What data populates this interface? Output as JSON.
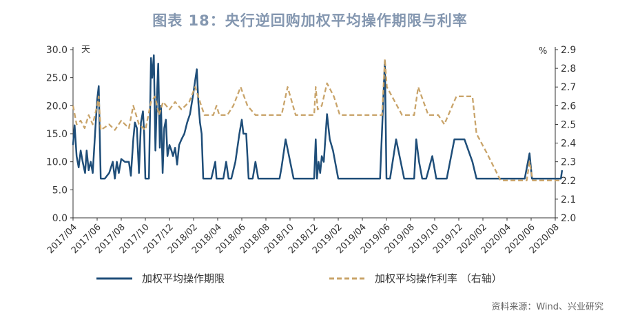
{
  "title": "图表 18：央行逆回购加权平均操作期限与利率",
  "source": "资料来源：Wind、兴业研究",
  "colors": {
    "term": "#1f4e79",
    "rate": "#c9a46a",
    "axis": "#333333"
  },
  "chart_data": {
    "type": "line",
    "left_axis_unit": "天",
    "right_axis_unit": "%",
    "ylim_left": [
      0,
      30
    ],
    "ylim_right": [
      2.0,
      2.9
    ],
    "left_ticks": [
      "0.0",
      "5.0",
      "10.0",
      "15.0",
      "20.0",
      "25.0",
      "30.0"
    ],
    "right_ticks": [
      "2.0",
      "2.1",
      "2.2",
      "2.3",
      "2.4",
      "2.5",
      "2.6",
      "2.7",
      "2.8",
      "2.9"
    ],
    "x_ticks": [
      "2017/04",
      "2017/06",
      "2017/08",
      "2017/10",
      "2017/12",
      "2018/02",
      "2018/04",
      "2018/06",
      "2018/08",
      "2018/10",
      "2018/12",
      "2019/02",
      "2019/04",
      "2019/06",
      "2019/08",
      "2019/10",
      "2019/12",
      "2020/02",
      "2020/04",
      "2020/06",
      "2020/08"
    ],
    "legend": {
      "term": "加权平均操作期限",
      "rate": "加权平均操作利率  （右轴）"
    },
    "series": [
      {
        "key": "term",
        "name": "加权平均操作期限",
        "axis": "left",
        "style": "solid",
        "points": [
          [
            "2017/04/01",
            13
          ],
          [
            "2017/04/05",
            16.5
          ],
          [
            "2017/04/10",
            11
          ],
          [
            "2017/04/15",
            9
          ],
          [
            "2017/04/20",
            12
          ],
          [
            "2017/04/25",
            10
          ],
          [
            "2017/05/01",
            8
          ],
          [
            "2017/05/05",
            12
          ],
          [
            "2017/05/10",
            8.5
          ],
          [
            "2017/05/15",
            10
          ],
          [
            "2017/05/20",
            8
          ],
          [
            "2017/05/25",
            14
          ],
          [
            "2017/06/01",
            21
          ],
          [
            "2017/06/05",
            23.5
          ],
          [
            "2017/06/10",
            7
          ],
          [
            "2017/06/20",
            7
          ],
          [
            "2017/07/01",
            8
          ],
          [
            "2017/07/10",
            10
          ],
          [
            "2017/07/15",
            7
          ],
          [
            "2017/07/20",
            10
          ],
          [
            "2017/07/25",
            8
          ],
          [
            "2017/08/01",
            10.5
          ],
          [
            "2017/08/10",
            10
          ],
          [
            "2017/08/20",
            10
          ],
          [
            "2017/08/25",
            7.5
          ],
          [
            "2017/09/01",
            14
          ],
          [
            "2017/09/05",
            17
          ],
          [
            "2017/09/10",
            16
          ],
          [
            "2017/09/15",
            8
          ],
          [
            "2017/09/20",
            17
          ],
          [
            "2017/09/25",
            19
          ],
          [
            "2017/09/28",
            15
          ],
          [
            "2017/10/01",
            7
          ],
          [
            "2017/10/10",
            7
          ],
          [
            "2017/10/15",
            28.5
          ],
          [
            "2017/10/18",
            25
          ],
          [
            "2017/10/22",
            29
          ],
          [
            "2017/10/26",
            12
          ],
          [
            "2017/10/30",
            22
          ],
          [
            "2017/11/03",
            27.5
          ],
          [
            "2017/11/07",
            12.5
          ],
          [
            "2017/11/10",
            20
          ],
          [
            "2017/11/14",
            8
          ],
          [
            "2017/11/18",
            16
          ],
          [
            "2017/11/22",
            17.5
          ],
          [
            "2017/11/26",
            11
          ],
          [
            "2017/12/01",
            13
          ],
          [
            "2017/12/06",
            12
          ],
          [
            "2017/12/10",
            11
          ],
          [
            "2017/12/15",
            12.5
          ],
          [
            "2017/12/20",
            9.5
          ],
          [
            "2017/12/25",
            13
          ],
          [
            "2018/01/01",
            14
          ],
          [
            "2018/01/08",
            15
          ],
          [
            "2018/01/15",
            17
          ],
          [
            "2018/01/22",
            18.5
          ],
          [
            "2018/01/30",
            22
          ],
          [
            "2018/02/05",
            24.5
          ],
          [
            "2018/02/09",
            26.5
          ],
          [
            "2018/02/13",
            20.5
          ],
          [
            "2018/02/17",
            17
          ],
          [
            "2018/02/21",
            15
          ],
          [
            "2018/02/25",
            7
          ],
          [
            "2018/03/15",
            7
          ],
          [
            "2018/03/25",
            10
          ],
          [
            "2018/03/28",
            7
          ],
          [
            "2018/04/15",
            7
          ],
          [
            "2018/04/22",
            10
          ],
          [
            "2018/04/28",
            7
          ],
          [
            "2018/05/05",
            7
          ],
          [
            "2018/05/15",
            10
          ],
          [
            "2018/05/25",
            15
          ],
          [
            "2018/06/01",
            17.5
          ],
          [
            "2018/06/05",
            15
          ],
          [
            "2018/06/12",
            15
          ],
          [
            "2018/06/18",
            7
          ],
          [
            "2018/06/28",
            7
          ],
          [
            "2018/07/05",
            10
          ],
          [
            "2018/07/12",
            7
          ],
          [
            "2018/09/05",
            7
          ],
          [
            "2018/09/10",
            9
          ],
          [
            "2018/09/20",
            14
          ],
          [
            "2018/10/10",
            7
          ],
          [
            "2018/12/01",
            7
          ],
          [
            "2018/12/05",
            14
          ],
          [
            "2018/12/08",
            7
          ],
          [
            "2018/12/12",
            10
          ],
          [
            "2018/12/16",
            8
          ],
          [
            "2018/12/20",
            11
          ],
          [
            "2018/12/25",
            10
          ],
          [
            "2019/01/03",
            18.5
          ],
          [
            "2019/01/10",
            14
          ],
          [
            "2019/01/18",
            12
          ],
          [
            "2019/02/01",
            7
          ],
          [
            "2019/05/15",
            7
          ],
          [
            "2019/05/27",
            28
          ],
          [
            "2019/05/31",
            7
          ],
          [
            "2019/06/10",
            7
          ],
          [
            "2019/06/25",
            14
          ],
          [
            "2019/07/15",
            7
          ],
          [
            "2019/08/10",
            7
          ],
          [
            "2019/08/15",
            14
          ],
          [
            "2019/08/22",
            10
          ],
          [
            "2019/08/30",
            7
          ],
          [
            "2019/09/10",
            7
          ],
          [
            "2019/09/25",
            11
          ],
          [
            "2019/10/05",
            7
          ],
          [
            "2019/11/01",
            7
          ],
          [
            "2019/11/20",
            14
          ],
          [
            "2019/12/15",
            14
          ],
          [
            "2020/01/05",
            10
          ],
          [
            "2020/01/15",
            7
          ],
          [
            "2020/05/15",
            7
          ],
          [
            "2020/05/27",
            11.5
          ],
          [
            "2020/06/03",
            7
          ],
          [
            "2020/08/15",
            7
          ],
          [
            "2020/08/18",
            8.5
          ]
        ]
      },
      {
        "key": "rate",
        "name": "加权平均操作利率  （右轴）",
        "axis": "right",
        "style": "dashed",
        "points": [
          [
            "2017/04/01",
            2.6
          ],
          [
            "2017/04/10",
            2.5
          ],
          [
            "2017/04/20",
            2.52
          ],
          [
            "2017/04/30",
            2.48
          ],
          [
            "2017/05/10",
            2.55
          ],
          [
            "2017/05/20",
            2.5
          ],
          [
            "2017/06/01",
            2.6
          ],
          [
            "2017/06/05",
            2.65
          ],
          [
            "2017/06/10",
            2.47
          ],
          [
            "2017/07/01",
            2.5
          ],
          [
            "2017/07/15",
            2.47
          ],
          [
            "2017/08/01",
            2.52
          ],
          [
            "2017/08/20",
            2.48
          ],
          [
            "2017/09/01",
            2.6
          ],
          [
            "2017/09/15",
            2.5
          ],
          [
            "2017/10/01",
            2.47
          ],
          [
            "2017/10/15",
            2.62
          ],
          [
            "2017/10/25",
            2.65
          ],
          [
            "2017/11/05",
            2.55
          ],
          [
            "2017/11/15",
            2.62
          ],
          [
            "2017/12/01",
            2.58
          ],
          [
            "2017/12/15",
            2.62
          ],
          [
            "2018/01/01",
            2.58
          ],
          [
            "2018/01/20",
            2.62
          ],
          [
            "2018/02/05",
            2.7
          ],
          [
            "2018/02/20",
            2.6
          ],
          [
            "2018/02/28",
            2.55
          ],
          [
            "2018/03/20",
            2.55
          ],
          [
            "2018/03/28",
            2.6
          ],
          [
            "2018/04/05",
            2.55
          ],
          [
            "2018/04/25",
            2.55
          ],
          [
            "2018/05/10",
            2.6
          ],
          [
            "2018/05/28",
            2.7
          ],
          [
            "2018/06/15",
            2.6
          ],
          [
            "2018/07/05",
            2.55
          ],
          [
            "2018/09/10",
            2.55
          ],
          [
            "2018/09/25",
            2.7
          ],
          [
            "2018/10/15",
            2.55
          ],
          [
            "2018/12/01",
            2.55
          ],
          [
            "2018/12/05",
            2.7
          ],
          [
            "2018/12/10",
            2.58
          ],
          [
            "2018/12/20",
            2.6
          ],
          [
            "2019/01/03",
            2.72
          ],
          [
            "2019/01/20",
            2.65
          ],
          [
            "2019/02/05",
            2.55
          ],
          [
            "2019/05/20",
            2.55
          ],
          [
            "2019/05/27",
            2.85
          ],
          [
            "2019/06/02",
            2.7
          ],
          [
            "2019/07/10",
            2.55
          ],
          [
            "2019/08/10",
            2.55
          ],
          [
            "2019/08/20",
            2.7
          ],
          [
            "2019/09/15",
            2.55
          ],
          [
            "2019/10/10",
            2.55
          ],
          [
            "2019/10/25",
            2.5
          ],
          [
            "2019/11/25",
            2.65
          ],
          [
            "2020/01/05",
            2.65
          ],
          [
            "2020/01/15",
            2.45
          ],
          [
            "2020/02/10",
            2.35
          ],
          [
            "2020/03/15",
            2.2
          ],
          [
            "2020/05/20",
            2.2
          ],
          [
            "2020/05/27",
            2.3
          ],
          [
            "2020/06/05",
            2.2
          ],
          [
            "2020/08/18",
            2.2
          ]
        ]
      }
    ]
  }
}
